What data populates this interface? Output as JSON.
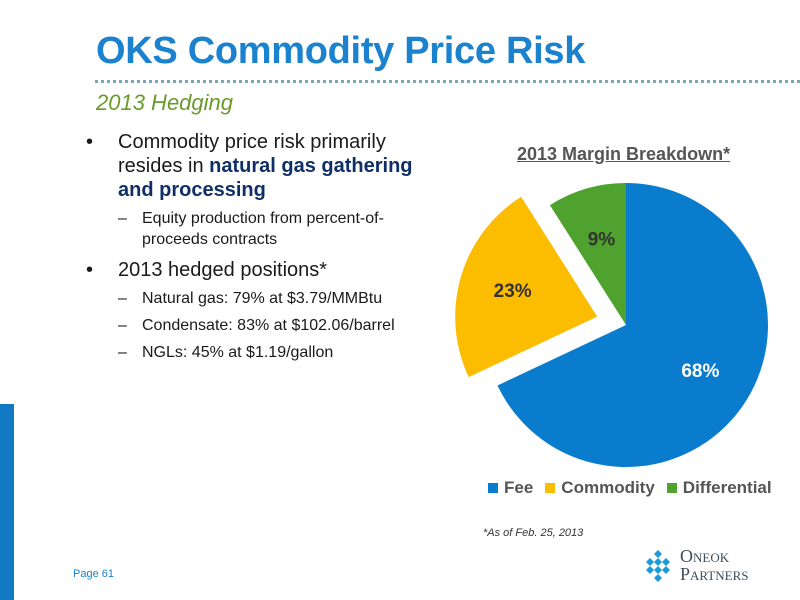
{
  "slide": {
    "title": "OKS Commodity Price Risk",
    "subtitle": "2013 Hedging",
    "page": "Page 61",
    "footnote": "*As of Feb. 25, 2013"
  },
  "bullets": {
    "b1_pre": "Commodity price risk primarily resides in ",
    "b1_highlight": "natural gas gathering and processing",
    "b1_sub1": "Equity production from percent-of-proceeds contracts",
    "b2": "2013 hedged positions*",
    "b2_sub1": "Natural gas: 79% at $3.79/MMBtu",
    "b2_sub2": "Condensate: 83% at $102.06/barrel",
    "b2_sub3": "NGLs: 45% at $1.19/gallon",
    "bullet_glyph": "•",
    "dash_glyph": "–"
  },
  "chart_data": {
    "type": "pie",
    "title": "2013 Margin Breakdown*",
    "categories": [
      "Fee",
      "Commodity",
      "Differential"
    ],
    "values": [
      68,
      23,
      9
    ],
    "labels": [
      "68%",
      "23%",
      "9%"
    ],
    "colors": [
      "#0a7ccd",
      "#fcbd00",
      "#4ea22d"
    ],
    "exploded": [
      false,
      true,
      false
    ],
    "legend_position": "bottom"
  },
  "logo": {
    "line1_cap": "O",
    "line1_rest": "NEOK",
    "line2_cap": "P",
    "line2_rest": "ARTNERS"
  }
}
